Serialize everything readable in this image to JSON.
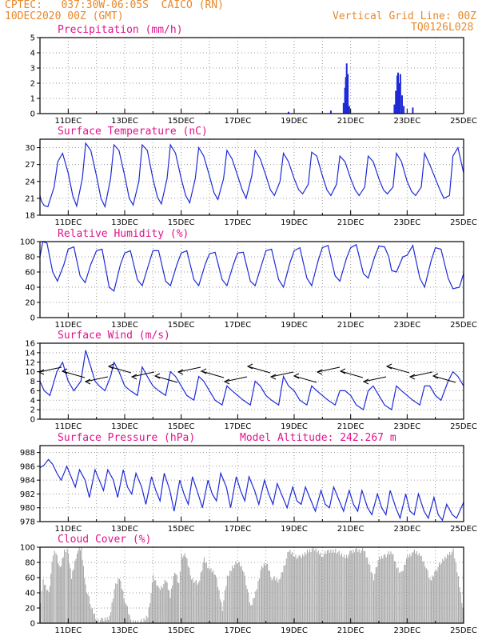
{
  "header": {
    "line1": "CPTEC:   037:30W-06:05S  CAICO (RN)",
    "line2": "10DEC2020 00Z (GMT)",
    "vgrid": "Vertical Grid Line: 00Z",
    "code": "TQ0126L028",
    "model_altitude": "Model Altitude: 242.267 m"
  },
  "colors": {
    "header": "#e8892a",
    "title": "#e0148c",
    "line": "#1f2bd6",
    "cloud": "#a9a9a9",
    "grid": "#9a9a9a"
  },
  "x_labels": [
    "11DEC",
    "13DEC",
    "15DEC",
    "17DEC",
    "19DEC",
    "21DEC",
    "23DEC",
    "25DEC"
  ],
  "chart_data": [
    {
      "id": "precip",
      "type": "bar",
      "title": "Precipitation (mm/h)",
      "ylim": [
        0,
        5
      ],
      "yticks": [
        0,
        1,
        2,
        3,
        4,
        5
      ],
      "points": [
        [
          15.9,
          0.05
        ],
        [
          18.8,
          0.12
        ],
        [
          20.3,
          0.2
        ],
        [
          20.75,
          0.7
        ],
        [
          20.8,
          1.7
        ],
        [
          20.83,
          2.4
        ],
        [
          20.86,
          3.3
        ],
        [
          20.9,
          2.6
        ],
        [
          20.95,
          0.5
        ],
        [
          22.55,
          0.6
        ],
        [
          22.6,
          1.5
        ],
        [
          22.65,
          2.5
        ],
        [
          22.68,
          2.7
        ],
        [
          22.72,
          2.0
        ],
        [
          22.76,
          2.6
        ],
        [
          22.82,
          1.2
        ],
        [
          22.88,
          0.5
        ],
        [
          23.2,
          0.4
        ]
      ]
    },
    {
      "id": "temp",
      "type": "line",
      "title": "Surface Temperature (nC)",
      "ylim": [
        18,
        31.5
      ],
      "yticks": [
        18,
        21,
        24,
        27,
        30
      ],
      "x": [
        10.0,
        10.05,
        10.15,
        10.28,
        10.5,
        10.63,
        10.8,
        11.0,
        11.16,
        11.3,
        11.5,
        11.62,
        11.8,
        12.0,
        12.16,
        12.3,
        12.5,
        12.62,
        12.8,
        13.0,
        13.16,
        13.3,
        13.5,
        13.62,
        13.8,
        14.0,
        14.16,
        14.3,
        14.5,
        14.62,
        14.8,
        15.0,
        15.16,
        15.3,
        15.5,
        15.62,
        15.8,
        16.0,
        16.16,
        16.3,
        16.5,
        16.62,
        16.8,
        17.0,
        17.16,
        17.3,
        17.5,
        17.62,
        17.8,
        18.0,
        18.16,
        18.3,
        18.5,
        18.62,
        18.8,
        19.0,
        19.16,
        19.3,
        19.5,
        19.62,
        19.8,
        20.0,
        20.16,
        20.3,
        20.5,
        20.62,
        20.8,
        21.0,
        21.16,
        21.3,
        21.5,
        21.62,
        21.8,
        22.0,
        22.16,
        22.3,
        22.5,
        22.62,
        22.8,
        23.0,
        23.16,
        23.3,
        23.5,
        23.62,
        23.8,
        24.0,
        24.16,
        24.3,
        24.5,
        24.62,
        24.8,
        25.0
      ],
      "y": [
        21.5,
        20.5,
        19.7,
        19.5,
        23.0,
        27.5,
        29.0,
        25.5,
        21.5,
        19.6,
        24.5,
        30.8,
        29.5,
        25.0,
        21.0,
        19.5,
        24.5,
        30.5,
        29.5,
        25.0,
        21.0,
        19.8,
        24.0,
        30.5,
        29.5,
        24.5,
        21.2,
        20.0,
        24.5,
        30.5,
        29.0,
        24.5,
        21.5,
        20.2,
        24.5,
        30.0,
        28.5,
        25.0,
        22.0,
        20.8,
        24.5,
        29.5,
        28.0,
        25.0,
        22.5,
        21.0,
        25.0,
        29.5,
        28.0,
        25.0,
        22.5,
        21.5,
        24.0,
        29.0,
        27.5,
        24.5,
        22.5,
        21.8,
        23.5,
        29.2,
        28.5,
        25.0,
        22.5,
        21.5,
        23.5,
        28.5,
        27.5,
        24.5,
        22.5,
        21.5,
        23.0,
        28.5,
        27.5,
        24.5,
        22.5,
        21.8,
        23.0,
        29.0,
        27.5,
        24.0,
        22.2,
        21.5,
        23.0,
        29.0,
        27.0,
        24.5,
        22.5,
        21.0,
        21.5,
        28.5,
        30.0,
        25.5
      ]
    },
    {
      "id": "rh",
      "type": "line",
      "title": "Relative Humidity (%)",
      "ylim": [
        0,
        100
      ],
      "yticks": [
        0,
        20,
        40,
        60,
        80,
        100
      ],
      "x": [
        10.0,
        10.1,
        10.25,
        10.45,
        10.62,
        10.85,
        11.0,
        11.2,
        11.42,
        11.6,
        11.8,
        12.0,
        12.2,
        12.45,
        12.62,
        12.85,
        13.0,
        13.2,
        13.45,
        13.62,
        13.85,
        14.0,
        14.2,
        14.45,
        14.62,
        14.85,
        15.0,
        15.2,
        15.45,
        15.62,
        15.85,
        16.0,
        16.2,
        16.45,
        16.62,
        16.85,
        17.0,
        17.2,
        17.45,
        17.62,
        17.85,
        18.0,
        18.2,
        18.45,
        18.62,
        18.85,
        19.0,
        19.2,
        19.45,
        19.62,
        19.85,
        20.0,
        20.2,
        20.45,
        20.62,
        20.85,
        21.0,
        21.2,
        21.45,
        21.62,
        21.85,
        22.0,
        22.2,
        22.35,
        22.45,
        22.62,
        22.85,
        23.0,
        23.2,
        23.45,
        23.62,
        23.85,
        24.0,
        24.2,
        24.45,
        24.62,
        24.85,
        25.0
      ],
      "y": [
        80,
        100,
        98,
        60,
        48,
        70,
        90,
        93,
        55,
        46,
        70,
        88,
        90,
        40,
        35,
        70,
        85,
        88,
        50,
        42,
        70,
        88,
        88,
        48,
        42,
        70,
        85,
        88,
        50,
        42,
        70,
        84,
        86,
        50,
        42,
        70,
        85,
        86,
        48,
        42,
        70,
        88,
        90,
        50,
        40,
        72,
        88,
        92,
        52,
        42,
        75,
        92,
        95,
        55,
        48,
        78,
        92,
        96,
        58,
        52,
        80,
        94,
        93,
        80,
        62,
        60,
        80,
        82,
        95,
        52,
        40,
        75,
        92,
        90,
        52,
        38,
        40,
        58
      ]
    },
    {
      "id": "wind",
      "type": "line",
      "title": "Surface Wind (m/s)",
      "ylim": [
        0,
        16
      ],
      "yticks": [
        0,
        2,
        4,
        6,
        8,
        10,
        12,
        14,
        16
      ],
      "x": [
        10.0,
        10.15,
        10.35,
        10.6,
        10.8,
        11.0,
        11.2,
        11.45,
        11.62,
        11.8,
        11.95,
        12.1,
        12.3,
        12.5,
        12.62,
        12.8,
        13.0,
        13.2,
        13.45,
        13.62,
        13.8,
        14.0,
        14.2,
        14.45,
        14.62,
        14.8,
        15.0,
        15.2,
        15.45,
        15.62,
        15.8,
        16.0,
        16.2,
        16.45,
        16.62,
        16.8,
        17.0,
        17.2,
        17.45,
        17.62,
        17.8,
        18.0,
        18.2,
        18.45,
        18.62,
        18.8,
        19.0,
        19.2,
        19.45,
        19.62,
        19.8,
        20.0,
        20.2,
        20.45,
        20.62,
        20.8,
        21.0,
        21.2,
        21.45,
        21.62,
        21.8,
        22.0,
        22.2,
        22.45,
        22.62,
        22.8,
        23.0,
        23.2,
        23.45,
        23.62,
        23.8,
        24.0,
        24.2,
        24.45,
        24.62,
        24.8,
        25.0
      ],
      "y": [
        8,
        6,
        5,
        10,
        12,
        8,
        6,
        8,
        14.5,
        11,
        8,
        7,
        6,
        9,
        12,
        10,
        7,
        6,
        5,
        11,
        9,
        7,
        6,
        5,
        10,
        9,
        7,
        5,
        4,
        9,
        8,
        6,
        4,
        3,
        7,
        6,
        5,
        4,
        3,
        8,
        7,
        5,
        4,
        3,
        9,
        7,
        6,
        4,
        3,
        7,
        6,
        5,
        4,
        3,
        6,
        6,
        5,
        3,
        2,
        6,
        7,
        5,
        3,
        2,
        7,
        6,
        5,
        4,
        3,
        7,
        7,
        5,
        4,
        8,
        10,
        9,
        7
      ]
    },
    {
      "id": "pres",
      "type": "line",
      "title": "Surface Pressure (hPa)",
      "ylim": [
        978,
        989
      ],
      "yticks": [
        978,
        980,
        982,
        984,
        986,
        988
      ],
      "x": [
        10.0,
        10.15,
        10.3,
        10.45,
        10.6,
        10.75,
        10.95,
        11.1,
        11.25,
        11.4,
        11.6,
        11.75,
        11.95,
        12.1,
        12.25,
        12.4,
        12.6,
        12.75,
        12.95,
        13.1,
        13.25,
        13.4,
        13.6,
        13.75,
        13.95,
        14.1,
        14.25,
        14.4,
        14.6,
        14.75,
        14.95,
        15.1,
        15.25,
        15.4,
        15.6,
        15.75,
        15.95,
        16.1,
        16.25,
        16.4,
        16.6,
        16.75,
        16.95,
        17.1,
        17.25,
        17.4,
        17.6,
        17.75,
        17.95,
        18.1,
        18.25,
        18.4,
        18.6,
        18.75,
        18.95,
        19.1,
        19.25,
        19.4,
        19.6,
        19.75,
        19.95,
        20.1,
        20.25,
        20.4,
        20.6,
        20.75,
        20.95,
        21.1,
        21.25,
        21.4,
        21.6,
        21.75,
        21.95,
        22.1,
        22.25,
        22.4,
        22.6,
        22.75,
        22.95,
        23.1,
        23.25,
        23.4,
        23.6,
        23.75,
        23.95,
        24.1,
        24.25,
        24.4,
        24.6,
        24.75,
        25.0
      ],
      "y": [
        985.8,
        986.2,
        987.0,
        986.3,
        985.0,
        984.0,
        986.0,
        984.5,
        983.0,
        985.5,
        984.0,
        981.5,
        985.5,
        984.0,
        982.5,
        985.5,
        984.0,
        981.5,
        985.5,
        983.0,
        982.0,
        985.0,
        983.0,
        980.5,
        984.5,
        982.5,
        981.0,
        985.0,
        982.5,
        979.5,
        984.0,
        982.0,
        980.5,
        984.5,
        982.0,
        980.0,
        984.0,
        982.0,
        981.0,
        985.0,
        983.0,
        980.0,
        984.5,
        982.5,
        981.0,
        984.5,
        982.5,
        980.5,
        984.0,
        982.0,
        980.5,
        983.5,
        981.5,
        980.0,
        983.0,
        981.0,
        980.5,
        983.0,
        981.0,
        979.5,
        982.5,
        980.5,
        980.0,
        983.0,
        981.0,
        979.5,
        982.5,
        980.5,
        979.5,
        982.5,
        980.0,
        979.0,
        982.0,
        980.0,
        979.0,
        982.5,
        980.0,
        978.5,
        982.0,
        979.5,
        979.0,
        982.0,
        979.5,
        978.5,
        981.5,
        979.0,
        978.2,
        980.5,
        979.0,
        978.5,
        980.8
      ]
    },
    {
      "id": "cloud",
      "type": "area",
      "title": "Cloud Cover (%)",
      "ylim": [
        0,
        100
      ],
      "yticks": [
        0,
        20,
        40,
        60,
        80,
        100
      ],
      "x": [
        10.0,
        10.1,
        10.3,
        10.45,
        10.55,
        10.7,
        10.85,
        10.95,
        11.1,
        11.3,
        11.45,
        11.6,
        11.8,
        12.0,
        12.2,
        12.45,
        12.62,
        12.8,
        13.0,
        13.2,
        13.45,
        13.62,
        13.8,
        14.0,
        14.2,
        14.45,
        14.6,
        14.75,
        14.9,
        15.0,
        15.15,
        15.35,
        15.6,
        15.8,
        16.0,
        16.2,
        16.45,
        16.62,
        16.8,
        17.0,
        17.2,
        17.45,
        17.62,
        17.8,
        18.0,
        18.2,
        18.45,
        18.62,
        18.8,
        19.0,
        19.2,
        19.45,
        19.62,
        19.8,
        20.0,
        20.2,
        20.45,
        20.62,
        20.8,
        21.0,
        21.2,
        21.45,
        21.62,
        21.8,
        22.0,
        22.2,
        22.45,
        22.62,
        22.8,
        23.0,
        23.2,
        23.45,
        23.62,
        23.8,
        24.0,
        24.2,
        24.45,
        24.62,
        24.8,
        25.0
      ],
      "y": [
        30,
        55,
        40,
        90,
        95,
        70,
        95,
        98,
        60,
        95,
        97,
        50,
        20,
        5,
        3,
        8,
        45,
        60,
        30,
        2,
        3,
        2,
        10,
        60,
        45,
        55,
        35,
        70,
        50,
        90,
        88,
        60,
        50,
        85,
        70,
        65,
        20,
        60,
        75,
        80,
        70,
        20,
        40,
        70,
        80,
        60,
        55,
        75,
        95,
        90,
        85,
        95,
        98,
        95,
        90,
        94,
        97,
        90,
        88,
        92,
        97,
        95,
        80,
        60,
        85,
        90,
        92,
        75,
        65,
        88,
        94,
        90,
        78,
        55,
        70,
        80,
        92,
        95,
        60,
        10
      ]
    }
  ]
}
